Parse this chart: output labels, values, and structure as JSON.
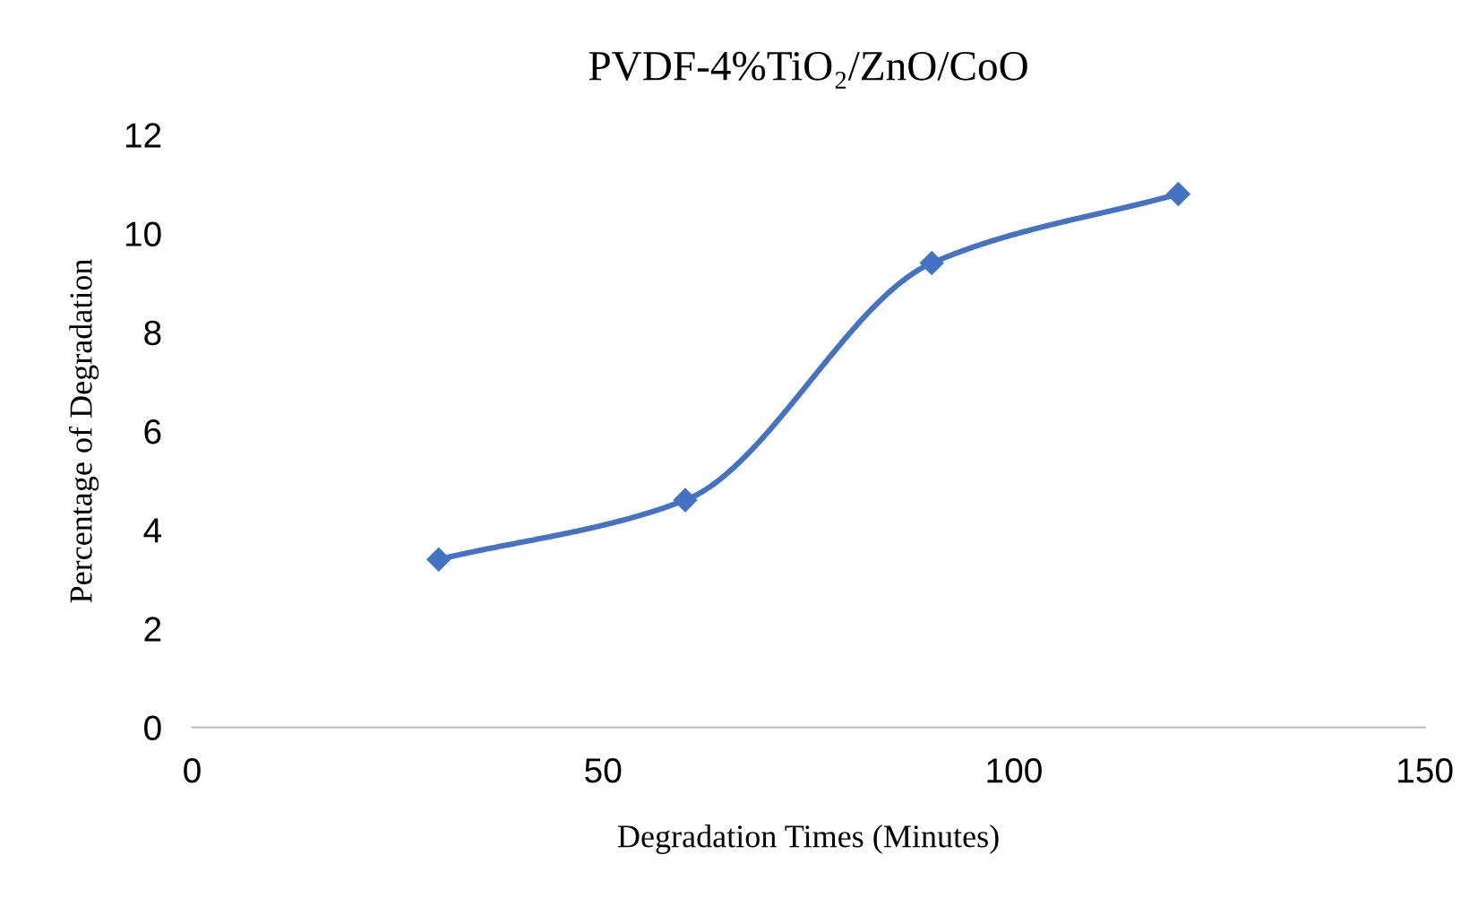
{
  "chart_data": {
    "type": "line",
    "title": "PVDF-4%TiO₂/ZnO/CoO",
    "xlabel": "Degradation Times (Minutes)",
    "ylabel": "Percentage of Degradation",
    "x": [
      30,
      60,
      90,
      120
    ],
    "series": [
      {
        "color": "#4472c4",
        "values": [
          3.4,
          4.6,
          9.4,
          10.8
        ]
      }
    ],
    "xlim": [
      0,
      150
    ],
    "xticks": [
      0,
      50,
      100,
      150
    ],
    "ylim": [
      0,
      12
    ],
    "yticks": [
      0,
      2,
      4,
      6,
      8,
      10,
      12
    ],
    "marker": "diamond",
    "line_style": "solid",
    "grid": false,
    "legend": false
  }
}
